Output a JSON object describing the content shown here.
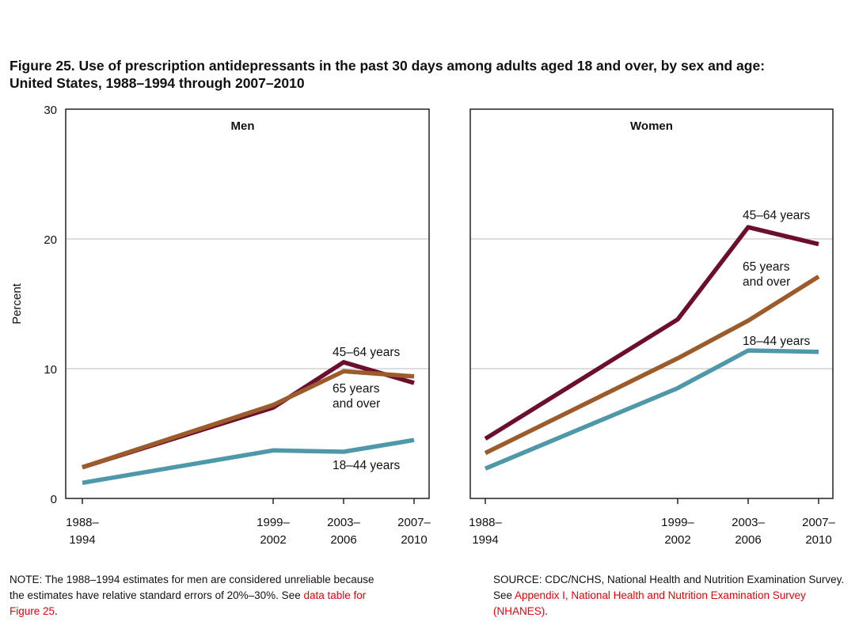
{
  "chart_data": {
    "type": "line",
    "title": "Figure 25. Use of prescription antidepressants in the past 30 days among adults aged 18 and over, by sex and age:",
    "subtitle": "United States, 1988–1994 through 2007–2010",
    "ylabel": "Percent",
    "ylim": [
      0,
      30
    ],
    "yticks": [
      "0",
      "10",
      "20",
      "30"
    ],
    "grid": true,
    "categories": [
      [
        "1988–",
        "1994"
      ],
      [
        "1999–",
        "2002"
      ],
      [
        "2003–",
        "2006"
      ],
      [
        "2007–",
        "2010"
      ]
    ],
    "x": [
      1991,
      2000.5,
      2004.5,
      2008.5
    ],
    "colors": {
      "45–64 years": "#6c0f2f",
      "65 years and over": "#9c5b2b",
      "18–44 years": "#4f98aa"
    },
    "panels": [
      {
        "name": "Men",
        "series": [
          {
            "name": "45–64 years",
            "label_lines": [
              "45–64 years"
            ],
            "values": [
              2.4,
              7.0,
              10.5,
              8.9
            ]
          },
          {
            "name": "65 years and over",
            "label_lines": [
              "65 years",
              "and over"
            ],
            "values": [
              2.4,
              7.2,
              9.8,
              9.4
            ]
          },
          {
            "name": "18–44 years",
            "label_lines": [
              "18–44 years"
            ],
            "values": [
              1.2,
              3.7,
              3.6,
              4.5
            ]
          }
        ]
      },
      {
        "name": "Women",
        "series": [
          {
            "name": "45–64 years",
            "label_lines": [
              "45–64 years"
            ],
            "values": [
              4.6,
              13.8,
              20.9,
              19.6
            ]
          },
          {
            "name": "65 years and over",
            "label_lines": [
              "65 years",
              "and over"
            ],
            "values": [
              3.5,
              10.8,
              13.7,
              17.1
            ]
          },
          {
            "name": "18–44 years",
            "label_lines": [
              "18–44 years"
            ],
            "values": [
              2.3,
              8.5,
              11.4,
              11.3
            ]
          }
        ]
      }
    ]
  },
  "notes": {
    "note_text": "NOTE: The 1988–1994 estimates for men are considered unreliable because the estimates have relative standard errors of 20%–30%. See ",
    "note_link": "data table for Figure 25",
    "note_end": ".",
    "source_text": "SOURCE: CDC/NCHS, National Health and Nutrition Examination Survey. See ",
    "source_link": "Appendix I, National Health and Nutrition Examination Survey (NHANES)",
    "source_end": "."
  }
}
